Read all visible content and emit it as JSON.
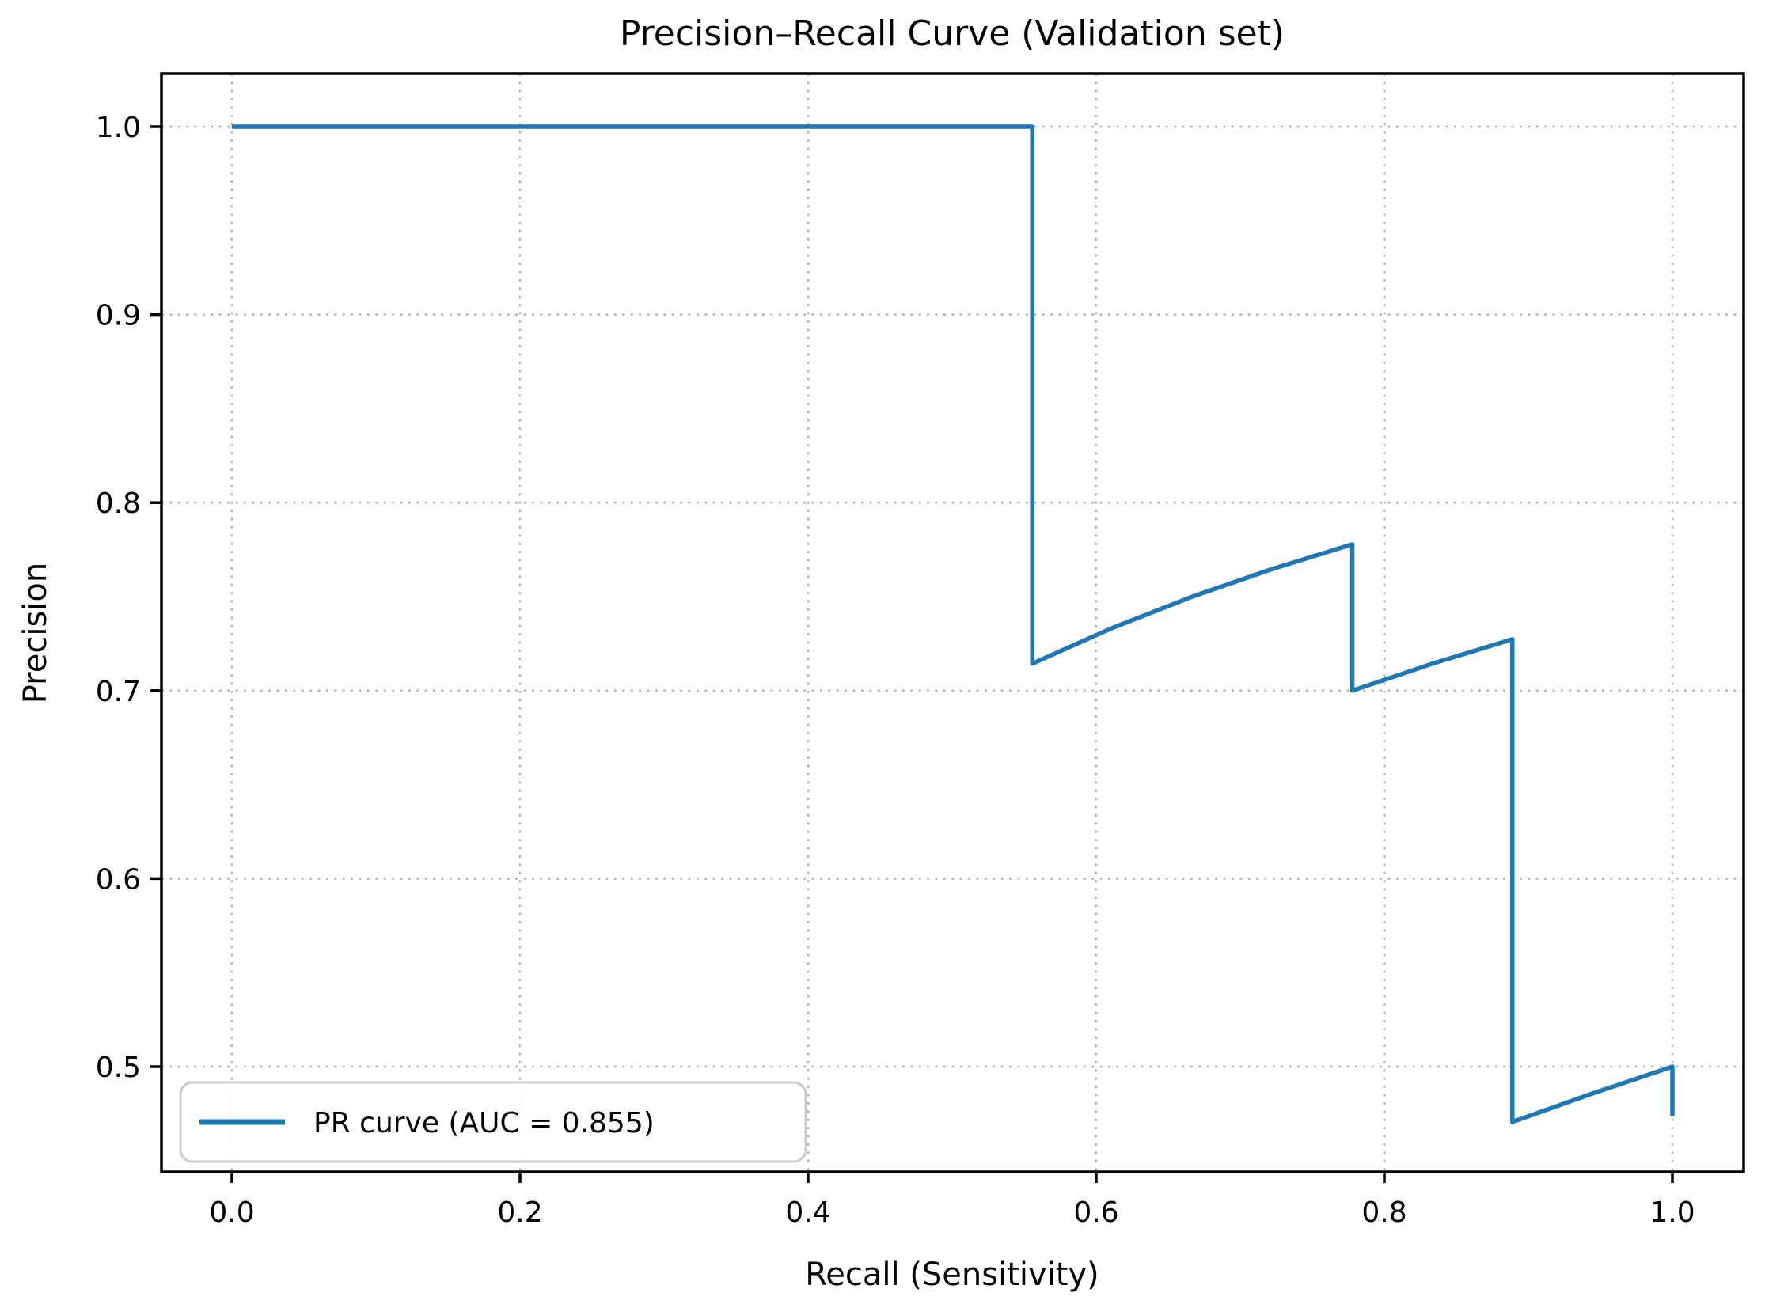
{
  "chart_data": {
    "type": "line",
    "title": "Precision–Recall Curve (Validation set)",
    "xlabel": "Recall (Sensitivity)",
    "ylabel": "Precision",
    "xlim": [
      -0.05,
      1.05
    ],
    "ylim": [
      0.444,
      1.028
    ],
    "xticks": [
      0.0,
      0.2,
      0.4,
      0.6,
      0.8,
      1.0
    ],
    "xtick_labels": [
      "0.0",
      "0.2",
      "0.4",
      "0.6",
      "0.8",
      "1.0"
    ],
    "yticks": [
      0.5,
      0.6,
      0.7,
      0.8,
      0.9,
      1.0
    ],
    "ytick_labels": [
      "0.5",
      "0.6",
      "0.7",
      "0.8",
      "0.9",
      "1.0"
    ],
    "grid": {
      "visible": true,
      "style": "dotted",
      "color": "#b0b0b0"
    },
    "legend": {
      "position": "lower left",
      "entries": [
        {
          "label": "PR curve (AUC = 0.855)",
          "color": "#1f77b4"
        }
      ]
    },
    "series": [
      {
        "name": "PR curve",
        "auc": 0.855,
        "color": "#1f77b4",
        "points": [
          [
            0.0,
            1.0
          ],
          [
            0.5556,
            1.0
          ],
          [
            0.5556,
            0.7143
          ],
          [
            0.6111,
            0.7333
          ],
          [
            0.6667,
            0.75
          ],
          [
            0.7222,
            0.7647
          ],
          [
            0.7778,
            0.7778
          ],
          [
            0.7778,
            0.7
          ],
          [
            0.8333,
            0.7143
          ],
          [
            0.8889,
            0.7273
          ],
          [
            0.8889,
            0.4706
          ],
          [
            0.9444,
            0.4857
          ],
          [
            1.0,
            0.5
          ],
          [
            1.0,
            0.4737
          ]
        ]
      }
    ]
  }
}
